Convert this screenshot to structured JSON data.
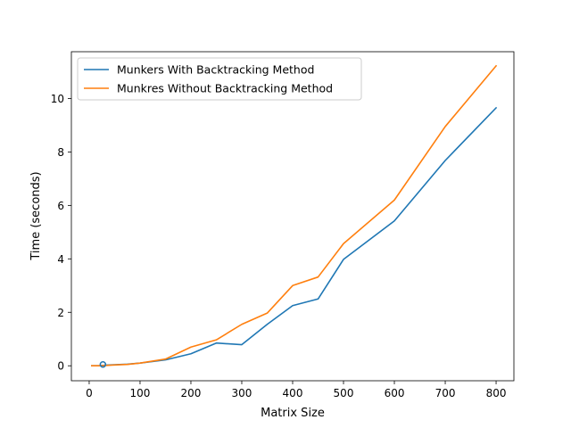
{
  "chart_data": {
    "type": "line",
    "title": "",
    "xlabel": "Matrix Size",
    "ylabel": "Time (seconds)",
    "xlim": [
      -35,
      835
    ],
    "ylim": [
      -0.56,
      11.75
    ],
    "xticks": [
      0,
      100,
      200,
      300,
      400,
      500,
      600,
      700,
      800
    ],
    "yticks": [
      0,
      2,
      4,
      6,
      8,
      10
    ],
    "grid": false,
    "legend_position": "upper-left",
    "series": [
      {
        "name": "Munkers With Backtracking Method",
        "color": "#1f77b4",
        "x": [
          5,
          10,
          20,
          30,
          50,
          75,
          100,
          150,
          200,
          250,
          300,
          350,
          400,
          450,
          500,
          600,
          700,
          800
        ],
        "y": [
          0.0,
          0.0,
          0.0,
          0.02,
          0.04,
          0.06,
          0.1,
          0.22,
          0.45,
          0.85,
          0.79,
          1.55,
          2.25,
          2.5,
          3.98,
          5.42,
          7.68,
          9.65
        ]
      },
      {
        "name": "Munkres Without Backtracking Method",
        "color": "#ff7f0e",
        "x": [
          5,
          10,
          20,
          30,
          50,
          75,
          100,
          150,
          200,
          250,
          300,
          350,
          400,
          450,
          500,
          600,
          700,
          800
        ],
        "y": [
          0.0,
          0.0,
          0.0,
          0.01,
          0.03,
          0.05,
          0.1,
          0.25,
          0.7,
          0.97,
          1.55,
          1.97,
          3.0,
          3.32,
          4.57,
          6.2,
          8.95,
          11.22
        ]
      }
    ],
    "annotations": [
      {
        "label": "outlier-marker",
        "x": 27,
        "y": 0.05,
        "color": "#1f77b4"
      }
    ]
  }
}
